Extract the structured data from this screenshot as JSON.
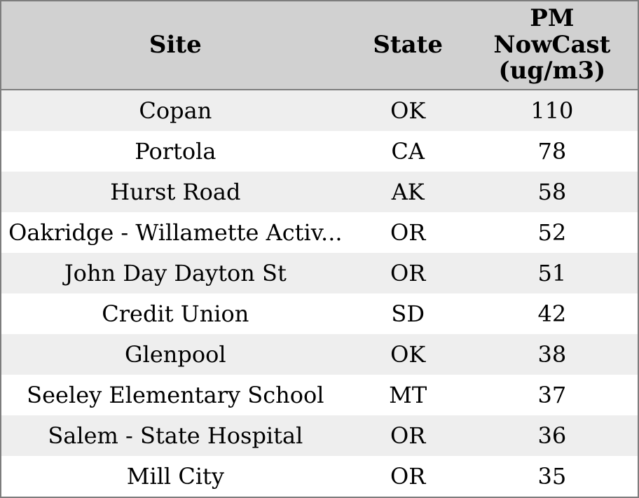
{
  "table": {
    "columns": [
      {
        "label": "Site"
      },
      {
        "label": "State"
      },
      {
        "label": "PM\nNowCast\n(ug/m3)"
      }
    ],
    "rows": [
      {
        "site": "Copan",
        "state": "OK",
        "value": "110"
      },
      {
        "site": "Portola",
        "state": "CA",
        "value": "78"
      },
      {
        "site": "Hurst Road",
        "state": "AK",
        "value": "58"
      },
      {
        "site": "Oakridge - Willamette Activ...",
        "state": "OR",
        "value": "52"
      },
      {
        "site": "John Day Dayton St",
        "state": "OR",
        "value": "51"
      },
      {
        "site": "Credit Union",
        "state": "SD",
        "value": "42"
      },
      {
        "site": "Glenpool",
        "state": "OK",
        "value": "38"
      },
      {
        "site": "Seeley Elementary School",
        "state": "MT",
        "value": "37"
      },
      {
        "site": "Salem - State Hospital",
        "state": "OR",
        "value": "36"
      },
      {
        "site": "Mill City",
        "state": "OR",
        "value": "35"
      }
    ]
  },
  "chart_data": {
    "type": "table",
    "title": "",
    "columns": [
      "Site",
      "State",
      "PM NowCast (ug/m3)"
    ],
    "rows": [
      [
        "Copan",
        "OK",
        110
      ],
      [
        "Portola",
        "CA",
        78
      ],
      [
        "Hurst Road",
        "AK",
        58
      ],
      [
        "Oakridge - Willamette Activ...",
        "OR",
        52
      ],
      [
        "John Day Dayton St",
        "OR",
        51
      ],
      [
        "Credit Union",
        "SD",
        42
      ],
      [
        "Glenpool",
        "OK",
        38
      ],
      [
        "Seeley Elementary School",
        "MT",
        37
      ],
      [
        "Salem - State Hospital",
        "OR",
        36
      ],
      [
        "Mill City",
        "OR",
        35
      ]
    ]
  },
  "colors": {
    "border": "#7d7d7d",
    "header_bg": "#d1d1d1",
    "row_odd_bg": "#eeeeee",
    "row_even_bg": "#ffffff",
    "text": "#000000"
  }
}
